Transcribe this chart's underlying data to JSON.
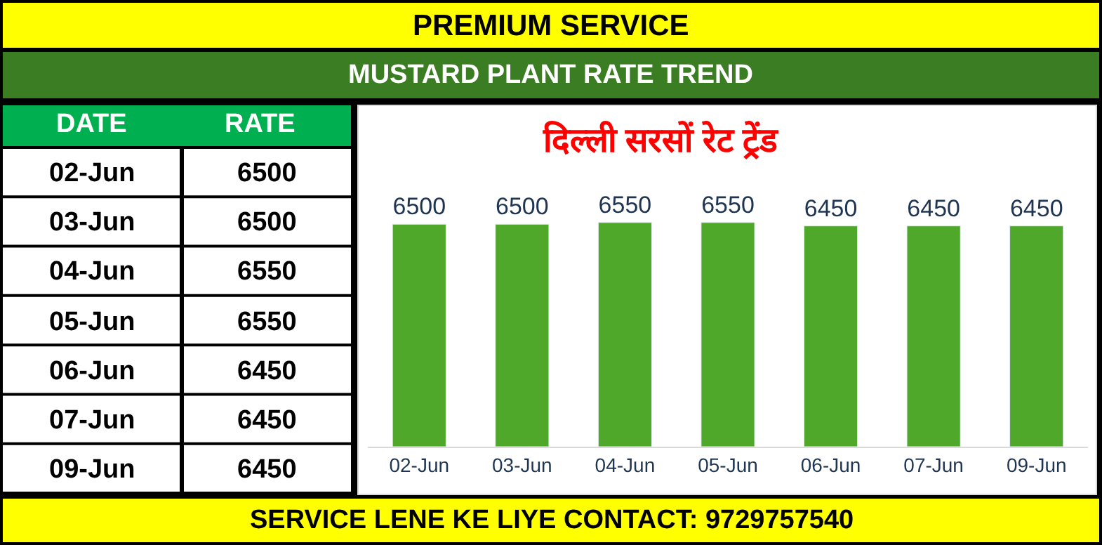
{
  "chart_data": {
    "type": "bar",
    "title": "PREMIUM SERVICE",
    "subtitle": "MUSTARD PLANT RATE TREND",
    "xlabel": "दिल्ली सरसों रेट ट्रेंड",
    "categories": [
      "02-Jun",
      "03-Jun",
      "04-Jun",
      "05-Jun",
      "06-Jun",
      "07-Jun",
      "09-Jun"
    ],
    "values": [
      6500,
      6500,
      6550,
      6550,
      6450,
      6450,
      6450
    ],
    "value_labels": [
      "6500",
      "6500",
      "6550",
      "6550",
      "6450",
      "6450",
      "6450"
    ],
    "color": "#4fa82a",
    "legend": false,
    "annotations": [
      "DATE",
      "RATE",
      "SERVICE LENE KE LIYE CONTACT: 9729757540"
    ]
  }
}
